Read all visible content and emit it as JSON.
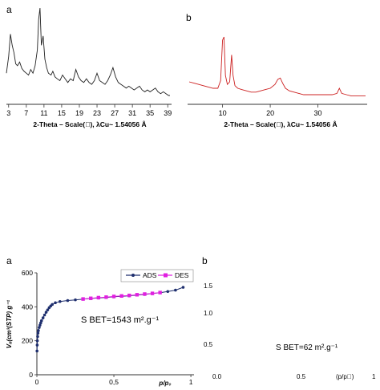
{
  "panels": {
    "xrd_a_letter": "a",
    "xrd_b_letter": "b",
    "iso_a_letter": "a",
    "iso_b_letter": "b"
  },
  "chart_data": [
    {
      "type": "line",
      "id": "xrd-a",
      "color": "#222222",
      "xlabel": "2-Theta – Scale(\u0000), λCu~ 1.54056 Å",
      "xlim": [
        2.5,
        39.5
      ],
      "xticks": [
        3,
        7,
        11,
        15,
        19,
        23,
        27,
        31,
        35,
        39
      ],
      "grid": false,
      "x": [
        2.5,
        3.0,
        3.4,
        3.8,
        4.2,
        4.6,
        5.0,
        5.5,
        6.0,
        6.5,
        7.0,
        7.5,
        8.0,
        8.5,
        9.0,
        9.5,
        9.8,
        10.1,
        10.4,
        10.8,
        11.2,
        11.6,
        12.0,
        12.6,
        13.0,
        13.5,
        14.0,
        14.6,
        15.2,
        15.8,
        16.4,
        17.0,
        17.6,
        18.2,
        18.8,
        19.4,
        20.0,
        20.6,
        21.2,
        21.8,
        22.4,
        23.0,
        23.6,
        24.2,
        24.8,
        25.4,
        26.0,
        26.6,
        27.2,
        27.8,
        28.4,
        29.0,
        29.6,
        30.2,
        30.8,
        31.4,
        32.0,
        32.6,
        33.2,
        33.8,
        34.4,
        35.0,
        35.6,
        36.2,
        36.8,
        37.4,
        38.0,
        38.6,
        39.2,
        39.5
      ],
      "y": [
        30,
        48,
        72,
        60,
        52,
        40,
        38,
        42,
        35,
        32,
        30,
        28,
        34,
        30,
        38,
        55,
        88,
        100,
        60,
        70,
        45,
        36,
        30,
        28,
        32,
        26,
        24,
        22,
        28,
        24,
        20,
        24,
        22,
        34,
        26,
        22,
        20,
        24,
        20,
        18,
        22,
        30,
        22,
        20,
        18,
        22,
        28,
        36,
        26,
        20,
        18,
        16,
        14,
        16,
        14,
        12,
        14,
        16,
        12,
        10,
        12,
        10,
        12,
        14,
        10,
        8,
        10,
        8,
        6,
        6
      ]
    },
    {
      "type": "line",
      "id": "xrd-b",
      "color": "#cc2020",
      "xlabel": "2-Theta – Scale(\u0000), λCu~ 1.54056 Å",
      "xlim": [
        3,
        40
      ],
      "xticks": [
        10,
        20,
        30
      ],
      "grid": false,
      "x": [
        3,
        4,
        5,
        6,
        7,
        8,
        9,
        9.6,
        10.0,
        10.3,
        10.6,
        11.0,
        11.5,
        11.9,
        12.2,
        12.6,
        13.2,
        14,
        15,
        16,
        17,
        18,
        19,
        20,
        21,
        21.6,
        22.1,
        22.6,
        23.2,
        24,
        25,
        26,
        27,
        28,
        29,
        30,
        31,
        32,
        33,
        34,
        34.5,
        35,
        36,
        37,
        38,
        39,
        40
      ],
      "y": [
        30,
        28,
        26,
        24,
        22,
        20,
        20,
        32,
        95,
        100,
        40,
        26,
        30,
        72,
        40,
        24,
        20,
        18,
        16,
        14,
        14,
        16,
        18,
        20,
        26,
        34,
        36,
        28,
        20,
        16,
        14,
        12,
        10,
        10,
        10,
        10,
        10,
        10,
        10,
        12,
        20,
        12,
        10,
        8,
        8,
        8,
        8
      ]
    },
    {
      "type": "line",
      "id": "iso-a",
      "yticks": [
        0,
        200,
        400,
        600
      ],
      "xticks": [
        0,
        0.5,
        1
      ],
      "xtick_labels": [
        "0",
        "0,5",
        "1"
      ],
      "xlim": [
        0,
        1
      ],
      "ylim": [
        0,
        600
      ],
      "ylabel": "Vₐ(cm³(STP) g⁻¹",
      "xlabel": "p/p₀",
      "legend": "top-right",
      "annotation": "S BET=1543 m².g⁻¹",
      "series": [
        {
          "name": "ADS",
          "color": "#1f2f6e",
          "x": [
            0.001,
            0.002,
            0.003,
            0.005,
            0.007,
            0.01,
            0.015,
            0.02,
            0.025,
            0.03,
            0.04,
            0.05,
            0.06,
            0.07,
            0.08,
            0.09,
            0.1,
            0.12,
            0.15,
            0.2,
            0.25,
            0.3,
            0.35,
            0.4,
            0.45,
            0.5,
            0.55,
            0.6,
            0.65,
            0.7,
            0.75,
            0.8,
            0.85,
            0.9,
            0.95
          ],
          "y": [
            140,
            175,
            200,
            225,
            245,
            260,
            278,
            292,
            305,
            318,
            335,
            352,
            368,
            382,
            395,
            405,
            414,
            424,
            431,
            437,
            441,
            445,
            449,
            452,
            455,
            459,
            462,
            465,
            469,
            473,
            478,
            483,
            490,
            498,
            515
          ]
        },
        {
          "name": "DES",
          "color": "#e020e0",
          "x": [
            0.3,
            0.35,
            0.4,
            0.45,
            0.5,
            0.55,
            0.6,
            0.65,
            0.7,
            0.75,
            0.8
          ],
          "y": [
            446,
            450,
            454,
            457,
            461,
            464,
            467,
            471,
            475,
            479,
            484
          ]
        }
      ]
    },
    {
      "type": "line",
      "id": "iso-b",
      "yticks": [
        0.5,
        1.0,
        1.5
      ],
      "ytick_labels": [
        "0.5",
        "1.0",
        "1.5"
      ],
      "xtick_labels": [
        "0.0",
        "0.5",
        "(p/p\u0000)",
        "1"
      ],
      "annotation": "S BET=62 m².g⁻¹"
    }
  ]
}
